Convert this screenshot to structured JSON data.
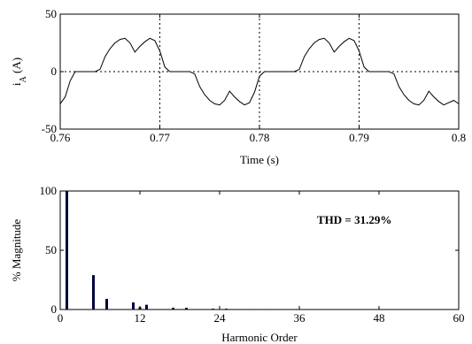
{
  "chart_data": [
    {
      "type": "line",
      "title": "",
      "xlabel": "Time (s)",
      "ylabel_main": "i",
      "ylabel_sub": "A",
      "ylabel_unit": " (A)",
      "xlim": [
        0.76,
        0.8
      ],
      "ylim": [
        -50,
        50
      ],
      "x_ticks": [
        0.76,
        0.77,
        0.78,
        0.79,
        0.8
      ],
      "x_tick_labels": [
        "0.76",
        "0.77",
        "0.78",
        "0.79",
        "0.8"
      ],
      "y_ticks": [
        -50,
        0,
        50
      ],
      "y_tick_labels": [
        "-50",
        "0",
        "50"
      ],
      "grid": "dotted",
      "series": [
        {
          "color": "#000000",
          "x": [
            0.76,
            0.7605,
            0.761,
            0.7615,
            0.762,
            0.7625,
            0.763,
            0.7635,
            0.764,
            0.7645,
            0.765,
            0.7655,
            0.766,
            0.7665,
            0.767,
            0.7675,
            0.768,
            0.7685,
            0.769,
            0.7695,
            0.77,
            0.7705,
            0.771,
            0.7715,
            0.772,
            0.7725,
            0.773,
            0.7735,
            0.774,
            0.7745,
            0.775,
            0.7755,
            0.776,
            0.7765,
            0.777,
            0.7775,
            0.778,
            0.7785,
            0.779,
            0.7795,
            0.78,
            0.7805,
            0.781,
            0.7815,
            0.782,
            0.7825,
            0.783,
            0.7835,
            0.784,
            0.7845,
            0.785,
            0.7855,
            0.786,
            0.7865,
            0.787,
            0.7875,
            0.788,
            0.7885,
            0.789,
            0.7895,
            0.79,
            0.7905,
            0.791,
            0.7915,
            0.792,
            0.7925,
            0.793,
            0.7935,
            0.794,
            0.7945,
            0.795,
            0.7955,
            0.796,
            0.7965,
            0.797,
            0.7975,
            0.798,
            0.7985,
            0.799,
            0.7995,
            0.8
          ],
          "y": [
            -28,
            -22,
            -8,
            0,
            0,
            0,
            0,
            0,
            2,
            13,
            20,
            25,
            28,
            29,
            25,
            17,
            22,
            26,
            29,
            27,
            18,
            4,
            0,
            0,
            0,
            0,
            0,
            -2,
            -13,
            -20,
            -25,
            -28,
            -29,
            -25,
            -17,
            -22,
            -26,
            -29,
            -27,
            -18,
            -4,
            0,
            0,
            0,
            0,
            0,
            0,
            0,
            2,
            13,
            20,
            25,
            28,
            29,
            25,
            17,
            22,
            26,
            29,
            27,
            18,
            4,
            0,
            0,
            0,
            0,
            0,
            -2,
            -13,
            -20,
            -25,
            -28,
            -29,
            -25,
            -17,
            -22,
            -26,
            -29,
            -27,
            -25,
            -28
          ]
        }
      ]
    },
    {
      "type": "bar",
      "title": "",
      "xlabel": "Harmonic Order",
      "ylabel": "% Magnitude",
      "xlim": [
        0,
        60
      ],
      "ylim": [
        0,
        100
      ],
      "x_ticks": [
        0,
        12,
        24,
        36,
        48,
        60
      ],
      "x_tick_labels": [
        "0",
        "12",
        "24",
        "36",
        "48",
        "60"
      ],
      "y_ticks": [
        0,
        50,
        100
      ],
      "y_tick_labels": [
        "0",
        "50",
        "100"
      ],
      "grid": "none",
      "bar_color": "#00003c",
      "annotation": "THD = 31.29%",
      "x": [
        1,
        5,
        7,
        11,
        12,
        13,
        17,
        19,
        23,
        25,
        29,
        31
      ],
      "values": [
        100,
        29,
        9,
        6,
        2,
        4,
        1.5,
        1.5,
        0.7,
        0.7,
        0.4,
        0.4
      ]
    }
  ]
}
